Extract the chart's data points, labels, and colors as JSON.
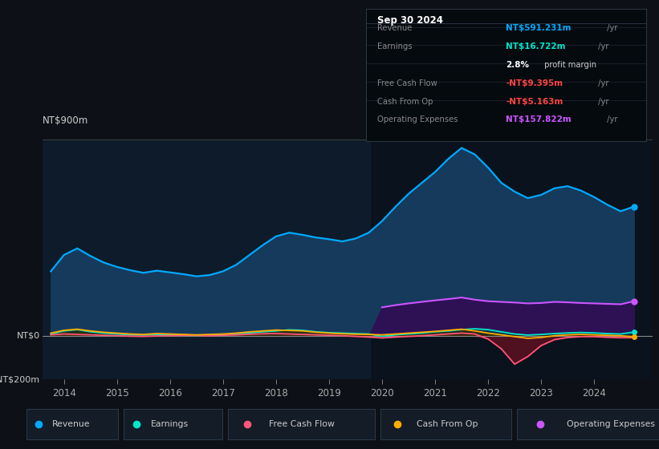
{
  "bg_color": "#0d1117",
  "chart_bg": "#0d1b2a",
  "chart_bg_dark": "#0a1520",
  "title": "Sep 30 2024",
  "years": [
    2013.75,
    2014.0,
    2014.25,
    2014.5,
    2014.75,
    2015.0,
    2015.25,
    2015.5,
    2015.75,
    2016.0,
    2016.25,
    2016.5,
    2016.75,
    2017.0,
    2017.25,
    2017.5,
    2017.75,
    2018.0,
    2018.25,
    2018.5,
    2018.75,
    2019.0,
    2019.25,
    2019.5,
    2019.75,
    2020.0,
    2020.25,
    2020.5,
    2020.75,
    2021.0,
    2021.25,
    2021.5,
    2021.75,
    2022.0,
    2022.25,
    2022.5,
    2022.75,
    2023.0,
    2023.25,
    2023.5,
    2023.75,
    2024.0,
    2024.25,
    2024.5,
    2024.75
  ],
  "revenue": [
    295,
    370,
    400,
    365,
    335,
    315,
    300,
    288,
    298,
    290,
    282,
    272,
    278,
    295,
    325,
    370,
    415,
    455,
    472,
    462,
    450,
    442,
    432,
    445,
    472,
    525,
    590,
    650,
    700,
    750,
    810,
    860,
    830,
    770,
    700,
    660,
    630,
    645,
    675,
    685,
    665,
    635,
    600,
    570,
    591
  ],
  "earnings": [
    8,
    22,
    28,
    18,
    12,
    8,
    4,
    3,
    6,
    4,
    2,
    1,
    3,
    6,
    9,
    13,
    18,
    22,
    27,
    25,
    18,
    14,
    12,
    10,
    8,
    -3,
    4,
    8,
    12,
    18,
    22,
    28,
    32,
    28,
    18,
    8,
    3,
    6,
    10,
    13,
    15,
    13,
    10,
    8,
    17
  ],
  "free_cash_flow": [
    4,
    8,
    6,
    4,
    2,
    0,
    -2,
    -3,
    -1,
    0,
    2,
    1,
    0,
    2,
    4,
    7,
    9,
    10,
    8,
    6,
    4,
    2,
    0,
    -3,
    -6,
    -10,
    -6,
    -3,
    0,
    4,
    8,
    12,
    8,
    -15,
    -60,
    -130,
    -95,
    -45,
    -18,
    -8,
    -4,
    -4,
    -7,
    -9,
    -9
  ],
  "cash_from_op": [
    12,
    25,
    30,
    22,
    16,
    12,
    8,
    6,
    10,
    8,
    6,
    4,
    6,
    8,
    12,
    18,
    22,
    26,
    24,
    22,
    16,
    12,
    9,
    7,
    6,
    4,
    8,
    12,
    16,
    20,
    25,
    30,
    22,
    12,
    4,
    -4,
    -12,
    -8,
    0,
    4,
    6,
    4,
    2,
    0,
    -5
  ],
  "op_expenses": [
    0,
    0,
    0,
    0,
    0,
    0,
    0,
    0,
    0,
    0,
    0,
    0,
    0,
    0,
    0,
    0,
    0,
    0,
    0,
    0,
    0,
    0,
    0,
    0,
    0,
    130,
    140,
    148,
    155,
    162,
    168,
    175,
    165,
    158,
    155,
    152,
    148,
    150,
    155,
    153,
    150,
    148,
    146,
    144,
    158
  ],
  "ylim": [
    -200,
    900
  ],
  "xlim": [
    2013.6,
    2025.1
  ],
  "xtick_years": [
    2014,
    2015,
    2016,
    2017,
    2018,
    2019,
    2020,
    2021,
    2022,
    2023,
    2024
  ],
  "revenue_color": "#00aaff",
  "revenue_fill": "#163a5c",
  "earnings_color": "#00e5cc",
  "earnings_fill": "#004444",
  "fcf_color": "#ff5577",
  "fcf_fill_neg": "#5c1020",
  "cashop_color": "#ffaa00",
  "cashop_fill": "#3a2800",
  "opex_color": "#cc55ff",
  "opex_fill": "#2e1055",
  "dark_region_start": 2019.8,
  "legend_labels": [
    "Revenue",
    "Earnings",
    "Free Cash Flow",
    "Cash From Op",
    "Operating Expenses"
  ],
  "legend_colors": [
    "#00aaff",
    "#00e5cc",
    "#ff5577",
    "#ffaa00",
    "#cc55ff"
  ],
  "info_rows": [
    {
      "label": "Revenue",
      "value": "NT$591.231m",
      "color": "#00aaff",
      "suffix": " /yr"
    },
    {
      "label": "Earnings",
      "value": "NT$16.722m",
      "color": "#00e5cc",
      "suffix": " /yr"
    },
    {
      "label": "",
      "value": "2.8%",
      "color": "#ffffff",
      "suffix": " profit margin",
      "suffix_color": "#cccccc"
    },
    {
      "label": "Free Cash Flow",
      "value": "-NT$9.395m",
      "color": "#ff4444",
      "suffix": " /yr"
    },
    {
      "label": "Cash From Op",
      "value": "-NT$5.163m",
      "color": "#ff4444",
      "suffix": " /yr"
    },
    {
      "label": "Operating Expenses",
      "value": "NT$157.822m",
      "color": "#cc55ff",
      "suffix": " /yr"
    }
  ]
}
